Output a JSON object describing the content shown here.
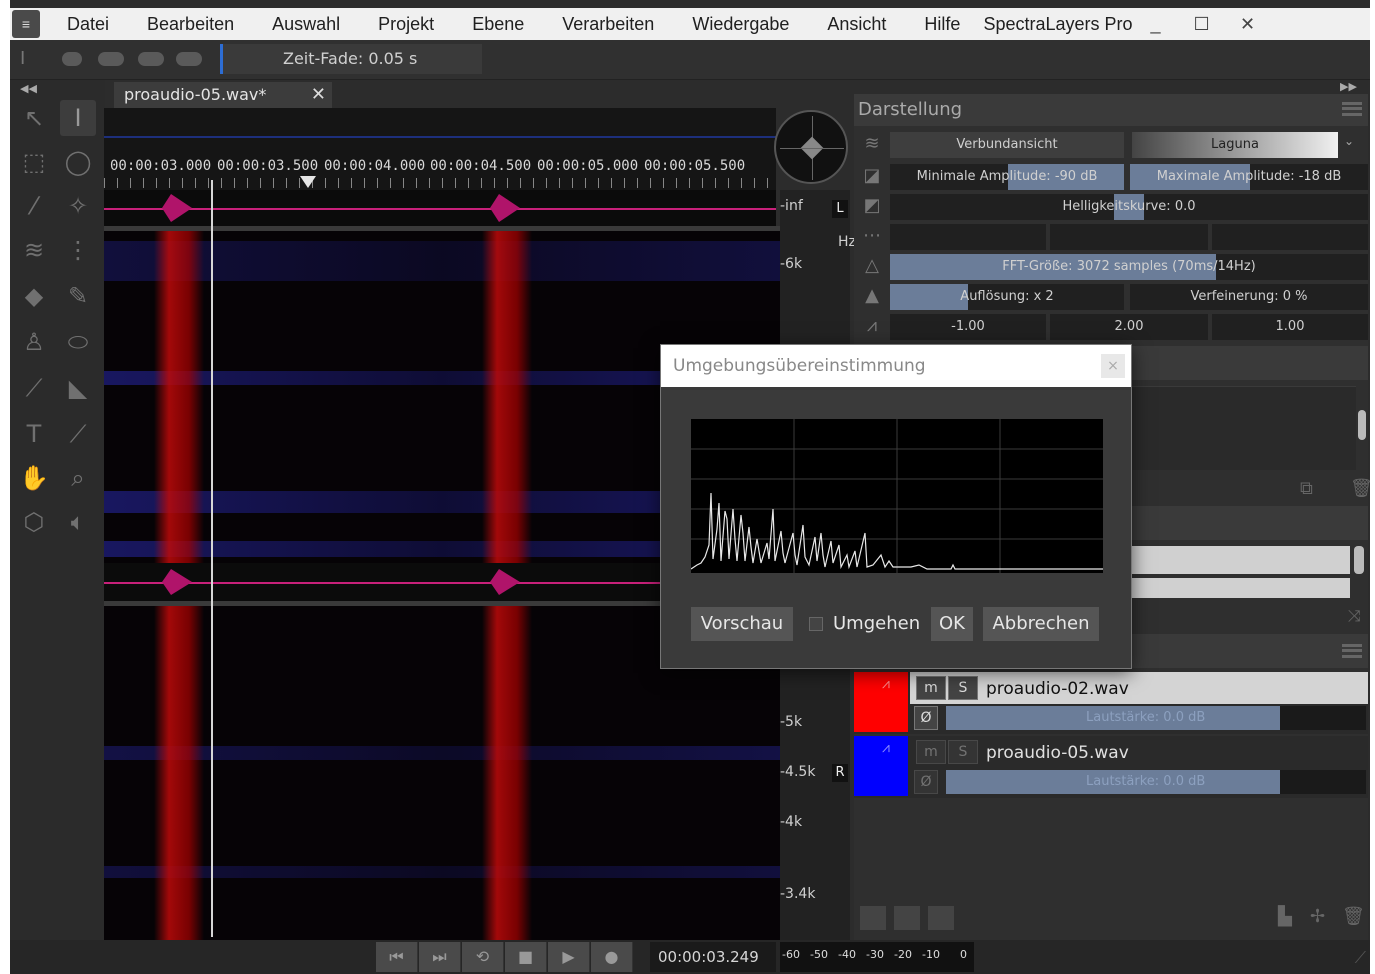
{
  "menu": {
    "items": [
      "Datei",
      "Bearbeiten",
      "Auswahl",
      "Projekt",
      "Ebene",
      "Verarbeiten",
      "Wiedergabe",
      "Ansicht",
      "Hilfe"
    ],
    "app_title": "SpectraLayers Pro",
    "minimize": "_",
    "maximize": "☐",
    "close": "✕"
  },
  "options": {
    "fade_label": "Zeit-Fade: 0.05 s"
  },
  "tab": {
    "label": "proaudio-05.wav*",
    "close": "✕"
  },
  "timeline": {
    "labels": [
      "00:00:03.000",
      "00:00:03.500",
      "00:00:04.000",
      "00:00:04.500",
      "00:00:05.000",
      "00:00:05.500"
    ]
  },
  "axis": {
    "inf": "-inf",
    "hz": "Hz",
    "channel_left": "L",
    "channel_right": "R",
    "freq_labels": [
      "-6k",
      "-5k",
      "-4.5k",
      "-4k",
      "-3.4k"
    ]
  },
  "panel": {
    "title": "Darstellung",
    "view_button": "Verbundansicht",
    "colormap": "Laguna",
    "min_amp": "Minimale Amplitude: -90 dB",
    "max_amp": "Maximale Amplitude: -18 dB",
    "brightness": "Helligkeitskurve: 0.0",
    "fft": "FFT-Größe: 3072 samples (70ms/14Hz)",
    "resolution": "Auflösung: x 2",
    "refinement": "Verfeinerung: 0 %",
    "v1": "-1.00",
    "v2": "2.00",
    "v3": "1.00"
  },
  "layers": [
    {
      "name": "proaudio-02.wav",
      "volume": "Lautstärke: 0.0 dB",
      "m": "m",
      "s": "S",
      "phase": "Ø",
      "color": "#ff0000"
    },
    {
      "name": "proaudio-05.wav",
      "volume": "Lautstärke: 0.0 dB",
      "m": "m",
      "s": "S",
      "phase": "Ø",
      "color": "#0000ff"
    }
  ],
  "transport": {
    "time": "00:00:03.249",
    "meter_labels": [
      "-60",
      "-50",
      "-40",
      "-30",
      "-20",
      "-10",
      "0"
    ]
  },
  "dialog": {
    "title": "Umgebungsübereinstimmung",
    "close": "×",
    "preview": "Vorschau",
    "bypass": "Umgehen",
    "ok": "OK",
    "cancel": "Abbrechen"
  },
  "colors": {
    "accent_blue": "#2d6dd4",
    "waveform": "#c8207a",
    "spectral_red": "#be0a0a",
    "spectral_blue": "#2828aa",
    "slider_fill": "#6b7d99"
  }
}
